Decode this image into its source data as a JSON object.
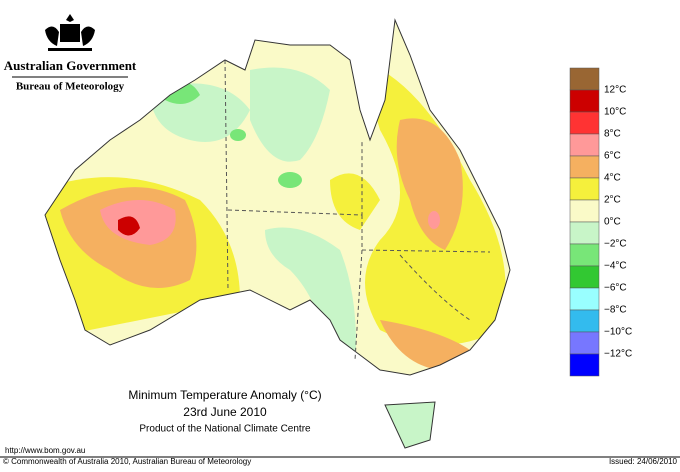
{
  "header": {
    "government": "Australian Government",
    "bureau": "Bureau of Meteorology"
  },
  "map": {
    "title": "Minimum Temperature Anomaly (°C)",
    "date": "23rd June 2010",
    "product": "Product of the National Climate Centre"
  },
  "legend": {
    "colors": [
      "#996633",
      "#cc0000",
      "#ff3333",
      "#ff9999",
      "#f5b060",
      "#f5f03c",
      "#fafac8",
      "#c8f5c8",
      "#78e678",
      "#32c832",
      "#99ffff",
      "#33bbee",
      "#7777ff",
      "#0000ff"
    ],
    "labels": [
      "12°C",
      "10°C",
      "8°C",
      "6°C",
      "4°C",
      "2°C",
      "0°C",
      "−2°C",
      "−4°C",
      "−6°C",
      "−8°C",
      "−10°C",
      "−12°C"
    ]
  },
  "footer": {
    "url": "http://www.bom.gov.au",
    "copyright": "© Commonwealth of Australia 2010, Australian Bureau of Meteorology",
    "issued": "Issued: 24/06/2010"
  }
}
